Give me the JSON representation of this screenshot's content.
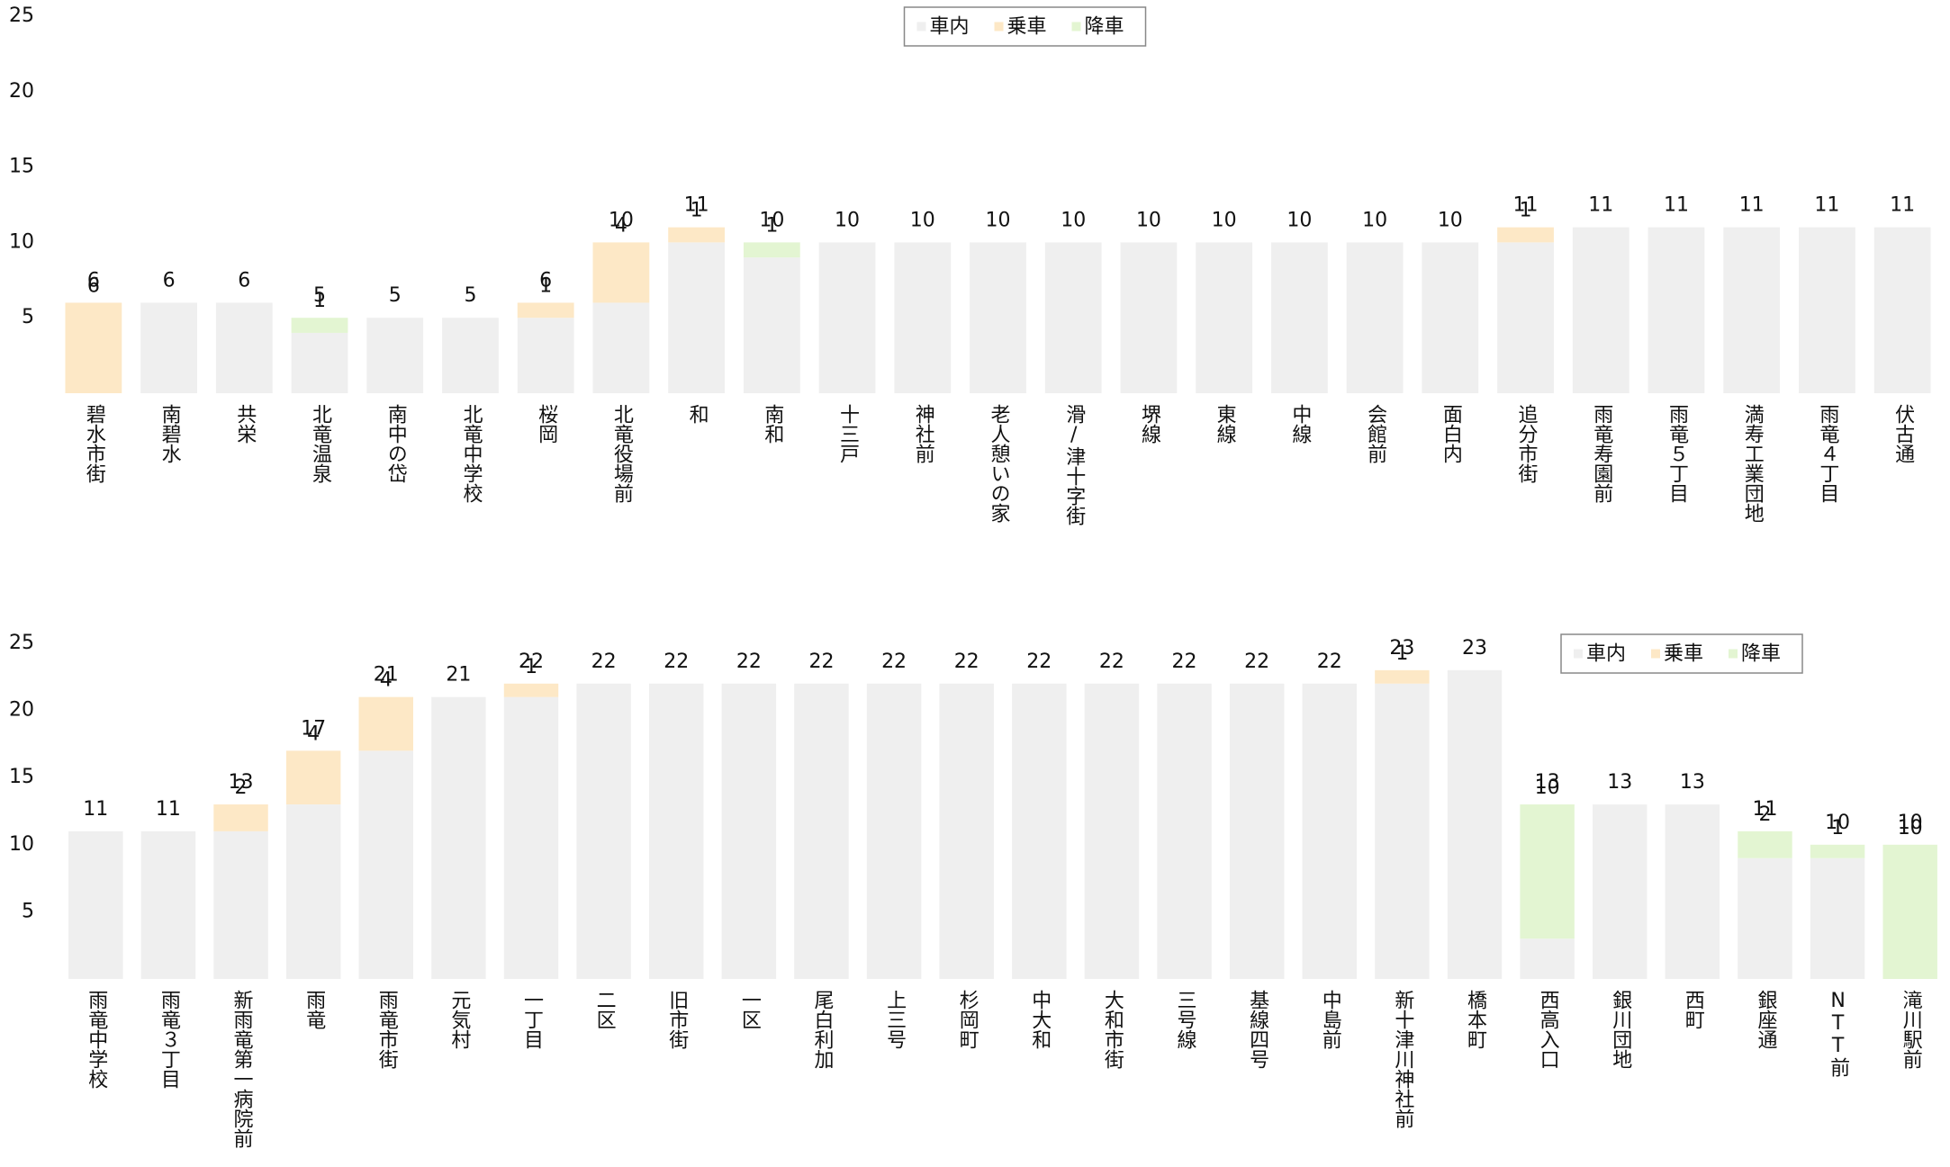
{
  "chart_data": [
    {
      "type": "bar",
      "stacked": true,
      "categories": [
        "碧水市街",
        "南碧水",
        "共栄",
        "北竜温泉",
        "南中の岱",
        "北竜中学校",
        "桜岡",
        "北竜役場前",
        "和",
        "南和",
        "十三戸",
        "神社前",
        "老人憩いの家",
        "滑/津十字街",
        "堺線",
        "東線",
        "中線",
        "会館前",
        "面白内",
        "追分市街",
        "雨竜寿園前",
        "雨竜５丁目",
        "満寿工業団地",
        "雨竜４丁目",
        "伏古通"
      ],
      "series": [
        {
          "name": "車内",
          "color": "#efefef",
          "label_color": "#bdbdbd",
          "values": [
            0,
            6,
            6,
            4,
            5,
            5,
            5,
            6,
            10,
            9,
            10,
            10,
            10,
            10,
            10,
            10,
            10,
            10,
            10,
            10,
            11,
            11,
            11,
            11,
            11
          ]
        },
        {
          "name": "乗車",
          "color": "#fde8c6",
          "label_color": "#c0873a",
          "values": [
            6,
            null,
            null,
            null,
            null,
            null,
            1,
            4,
            1,
            null,
            null,
            null,
            null,
            null,
            null,
            null,
            null,
            null,
            null,
            1,
            null,
            null,
            null,
            null,
            null
          ]
        },
        {
          "name": "降車",
          "color": "#e3f5d2",
          "label_color": "#1a8a4a",
          "values": [
            null,
            null,
            null,
            1,
            null,
            null,
            null,
            null,
            null,
            1,
            null,
            null,
            null,
            null,
            null,
            null,
            null,
            null,
            null,
            null,
            null,
            null,
            null,
            null,
            null
          ]
        }
      ],
      "totals": [
        6,
        6,
        6,
        5,
        5,
        5,
        6,
        10,
        11,
        10,
        10,
        10,
        10,
        10,
        10,
        10,
        10,
        10,
        10,
        11,
        11,
        11,
        11,
        11,
        11
      ],
      "ylim": [
        0,
        25
      ],
      "yticks": [
        5,
        10,
        15,
        20,
        25
      ],
      "legend": "top-center"
    },
    {
      "type": "bar",
      "stacked": true,
      "categories": [
        "雨竜中学校",
        "雨竜３丁目",
        "新雨竜第一病院前",
        "雨竜",
        "雨竜市街",
        "元気村",
        "一丁目",
        "二区",
        "旧市街",
        "一区",
        "尾白利加",
        "上三号",
        "杉岡町",
        "中大和",
        "大和市街",
        "三号線",
        "基線四号",
        "中島前",
        "新十津川神社前",
        "橋本町",
        "西高入口",
        "銀川団地",
        "西町",
        "銀座通",
        "NTT前",
        "滝川駅前"
      ],
      "series": [
        {
          "name": "車内",
          "color": "#efefef",
          "label_color": "#bdbdbd",
          "values": [
            11,
            11,
            11,
            13,
            17,
            21,
            21,
            22,
            22,
            22,
            22,
            22,
            22,
            22,
            22,
            22,
            22,
            22,
            22,
            23,
            3,
            13,
            13,
            9,
            9,
            0
          ]
        },
        {
          "name": "乗車",
          "color": "#fde8c6",
          "label_color": "#c0873a",
          "values": [
            null,
            null,
            2,
            4,
            4,
            null,
            1,
            null,
            null,
            null,
            null,
            null,
            null,
            null,
            null,
            null,
            null,
            null,
            1,
            null,
            null,
            null,
            null,
            null,
            null,
            null
          ]
        },
        {
          "name": "降車",
          "color": "#e3f5d2",
          "label_color": "#1a8a4a",
          "values": [
            null,
            null,
            null,
            null,
            null,
            null,
            null,
            null,
            null,
            null,
            null,
            null,
            null,
            null,
            null,
            null,
            null,
            null,
            null,
            null,
            10,
            null,
            null,
            2,
            1,
            10
          ]
        }
      ],
      "totals": [
        11,
        11,
        13,
        17,
        21,
        21,
        22,
        22,
        22,
        22,
        22,
        22,
        22,
        22,
        22,
        22,
        22,
        22,
        23,
        23,
        13,
        13,
        13,
        11,
        10,
        10
      ],
      "ylim": [
        0,
        25
      ],
      "yticks": [
        5,
        10,
        15,
        20,
        25
      ],
      "legend": "top-right"
    }
  ]
}
